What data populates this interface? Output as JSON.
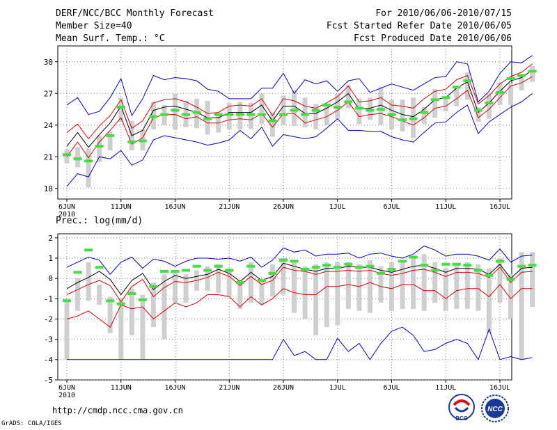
{
  "header": {
    "title": "DERF/NCC/BCC Monthly Forecast",
    "member_size": "Member Size=40",
    "variable": "Mean Surf. Temp.: °C",
    "period": "For 2010/06/06-2010/07/15",
    "started_refer": "Fcst Started Refer Date 2010/06/05",
    "produced": "Fcst Produced Date 2010/06/06"
  },
  "footer": {
    "url": "http://cmdp.ncc.cma.gov.cn",
    "credit": "GrADS: COLA/IGES"
  },
  "logos": {
    "bcc_label": "BCC",
    "ncc_label": "NCC"
  },
  "colors": {
    "max_min": "#0000cc",
    "spread": "#dd0000",
    "mean": "#000000",
    "members_box": "#cfcfcf",
    "median_marker": "#44dd44"
  },
  "chart_data": [
    {
      "type": "line",
      "title": "Mean Surf. Temp.: °C",
      "xlabel": "",
      "ylabel": "°C",
      "x_tick_labels": [
        "6JUN",
        "11JUN",
        "16JUN",
        "21JUN",
        "26JUN",
        "1JUL",
        "6JUL",
        "11JUL",
        "16JUL"
      ],
      "x_tick_sub": "2010",
      "ylim": [
        17,
        31.5
      ],
      "yticks": [
        "18",
        "21",
        "24",
        "27",
        "30"
      ],
      "ytick_values": [
        18,
        21,
        24,
        27,
        30
      ],
      "grid": true,
      "series": [
        {
          "name": "max",
          "values": [
            25.9,
            26.6,
            25.0,
            25.3,
            26.6,
            28.4,
            24.9,
            26.5,
            28.7,
            28.3,
            28.5,
            28.4,
            28.2,
            27.4,
            27.2,
            26.5,
            26.5,
            26.5,
            27.5,
            27.5,
            28.9,
            27.0,
            28.3,
            27.9,
            28.2,
            27.2,
            28.2,
            28.4,
            27.1,
            27.5,
            27.9,
            27.6,
            27.3,
            27.9,
            28.5,
            28.6,
            30.0,
            29.8,
            26.2,
            27.2,
            28.9,
            30.0,
            29.9,
            30.6
          ]
        },
        {
          "name": "spread_upper",
          "values": [
            23.3,
            24.1,
            22.7,
            23.9,
            24.9,
            26.4,
            23.7,
            24.4,
            26.1,
            26.4,
            26.5,
            26.2,
            25.7,
            25.1,
            25.2,
            25.8,
            25.9,
            25.8,
            26.5,
            24.9,
            26.5,
            26.3,
            25.8,
            25.6,
            26.1,
            26.7,
            27.7,
            26.2,
            26.3,
            26.6,
            25.9,
            25.8,
            25.6,
            26.5,
            27.2,
            27.4,
            28.3,
            28.7,
            26.0,
            26.8,
            27.9,
            28.6,
            29.0,
            29.8
          ]
        },
        {
          "name": "mean",
          "values": [
            22.0,
            23.3,
            21.9,
            23.1,
            24.2,
            25.8,
            23.0,
            23.5,
            25.4,
            25.7,
            25.8,
            25.5,
            25.2,
            24.7,
            24.7,
            25.2,
            25.2,
            25.2,
            25.9,
            24.4,
            25.8,
            25.8,
            25.1,
            25.1,
            25.6,
            26.2,
            27.0,
            25.5,
            25.6,
            25.9,
            25.4,
            25.0,
            24.8,
            25.5,
            26.4,
            26.6,
            27.5,
            28.1,
            25.2,
            26.1,
            27.2,
            28.2,
            28.5,
            29.2
          ]
        },
        {
          "name": "spread_lower",
          "values": [
            21.0,
            22.4,
            20.9,
            22.4,
            23.5,
            24.7,
            22.2,
            22.8,
            24.7,
            25.0,
            25.0,
            24.6,
            24.8,
            24.2,
            24.2,
            24.5,
            24.6,
            24.5,
            25.1,
            23.8,
            25.1,
            25.1,
            24.2,
            24.5,
            24.8,
            25.4,
            26.2,
            24.8,
            25.0,
            25.1,
            24.8,
            24.4,
            24.0,
            24.7,
            25.6,
            25.8,
            26.5,
            27.3,
            24.7,
            25.5,
            26.6,
            27.7,
            28.0,
            28.6
          ]
        },
        {
          "name": "min",
          "values": [
            18.2,
            19.4,
            19.1,
            21.0,
            20.8,
            21.6,
            20.2,
            20.7,
            22.6,
            23.0,
            22.8,
            22.6,
            22.4,
            22.1,
            22.3,
            22.6,
            23.5,
            22.7,
            23.8,
            22.0,
            23.1,
            22.9,
            22.7,
            22.9,
            23.7,
            24.6,
            23.5,
            23.5,
            23.4,
            23.4,
            22.9,
            22.6,
            22.4,
            23.3,
            24.2,
            24.3,
            25.2,
            25.9,
            23.2,
            24.3,
            25.0,
            25.7,
            26.2,
            27.0
          ]
        },
        {
          "name": "box_top",
          "values": [
            21.7,
            21.9,
            21.8,
            23.0,
            23.4,
            26.6,
            24.4,
            23.6,
            26.2,
            25.9,
            27.0,
            26.3,
            26.5,
            26.3,
            25.0,
            26.1,
            26.2,
            26.1,
            27.0,
            25.2,
            26.8,
            27.3,
            26.6,
            26.0,
            26.0,
            27.0,
            27.8,
            26.5,
            26.6,
            27.6,
            26.4,
            26.4,
            26.6,
            25.7,
            27.4,
            26.6,
            27.7,
            29.0,
            25.7,
            27.0,
            28.0,
            28.0,
            28.6,
            29.6
          ]
        },
        {
          "name": "box_bottom",
          "values": [
            20.4,
            20.0,
            18.1,
            20.5,
            21.6,
            24.3,
            21.6,
            21.6,
            23.6,
            24.0,
            23.6,
            23.8,
            23.7,
            23.1,
            23.3,
            23.6,
            23.6,
            23.6,
            24.1,
            22.9,
            24.0,
            23.9,
            23.8,
            23.6,
            24.0,
            24.6,
            25.6,
            24.1,
            24.5,
            24.0,
            23.6,
            23.4,
            22.8,
            24.1,
            24.7,
            25.3,
            25.8,
            26.4,
            24.3,
            24.6,
            25.9,
            25.9,
            27.3,
            28.1
          ]
        },
        {
          "name": "median",
          "values": [
            21.2,
            20.8,
            20.6,
            22.0,
            23.0,
            25.7,
            22.4,
            22.5,
            24.8,
            25.0,
            25.4,
            25.0,
            25.2,
            24.6,
            25.0,
            25.0,
            25.0,
            25.0,
            25.0,
            24.4,
            25.0,
            25.4,
            25.0,
            25.4,
            25.9,
            25.7,
            26.2,
            25.6,
            25.4,
            25.5,
            25.0,
            24.5,
            24.6,
            25.2,
            26.4,
            26.6,
            27.6,
            28.2,
            25.4,
            26.1,
            27.1,
            28.4,
            28.7,
            29.1
          ]
        }
      ]
    },
    {
      "type": "line",
      "title": "Prec.: log(mm/d)",
      "xlabel": "",
      "ylabel": "log(mm/d)",
      "x_tick_labels": [
        "6JUN",
        "11JUN",
        "16JUN",
        "21JUN",
        "26JUN",
        "1JUL",
        "6JUL",
        "11JUL",
        "16JUL"
      ],
      "x_tick_sub": "2010",
      "ylim": [
        -5,
        2.2
      ],
      "yticks": [
        "2",
        "1",
        "0",
        "-1",
        "-2",
        "-3",
        "-4",
        "-5"
      ],
      "ytick_values": [
        2,
        1,
        0,
        -1,
        -2,
        -3,
        -4,
        -5
      ],
      "grid": true,
      "series": [
        {
          "name": "max",
          "values": [
            0.55,
            0.8,
            1.05,
            0.9,
            0.2,
            0.8,
            1.05,
            0.5,
            0.95,
            0.85,
            0.6,
            0.85,
            1.0,
            1.0,
            0.95,
            1.0,
            0.85,
            1.05,
            0.55,
            0.9,
            1.5,
            1.3,
            1.4,
            1.1,
            1.2,
            1.2,
            1.25,
            1.0,
            1.2,
            1.25,
            1.1,
            1.0,
            1.2,
            1.6,
            1.4,
            1.1,
            1.2,
            1.2,
            1.1,
            0.9,
            1.45,
            0.8,
            1.1,
            1.15
          ]
        },
        {
          "name": "mean",
          "values": [
            -0.5,
            -0.2,
            0.05,
            0.35,
            -0.05,
            -0.8,
            -0.1,
            0.25,
            -0.55,
            -0.15,
            0.15,
            0.0,
            0.1,
            0.2,
            0.45,
            0.25,
            -0.15,
            0.3,
            -0.1,
            0.1,
            0.75,
            0.6,
            0.45,
            0.35,
            0.5,
            0.5,
            0.6,
            0.55,
            0.55,
            0.4,
            0.3,
            0.45,
            0.6,
            0.65,
            0.5,
            0.3,
            0.5,
            0.5,
            0.45,
            0.2,
            0.7,
            0.0,
            0.5,
            0.55
          ]
        },
        {
          "name": "spread_upper",
          "values": [
            -0.8,
            -0.55,
            -0.3,
            -0.1,
            -0.35,
            -1.15,
            -0.4,
            -0.05,
            -0.9,
            -0.45,
            -0.15,
            -0.2,
            -0.1,
            0.05,
            0.3,
            0.1,
            -0.35,
            0.1,
            -0.3,
            -0.1,
            0.55,
            0.4,
            0.35,
            0.2,
            0.35,
            0.35,
            0.4,
            0.35,
            0.4,
            0.25,
            0.15,
            0.25,
            0.4,
            0.45,
            0.3,
            0.1,
            0.3,
            0.3,
            0.25,
            0.05,
            0.55,
            -0.2,
            0.3,
            0.35
          ]
        },
        {
          "name": "spread_lower",
          "values": [
            -2.0,
            -1.85,
            -1.6,
            -2.0,
            -2.4,
            -1.3,
            -1.5,
            -1.4,
            -2.0,
            -1.6,
            -1.2,
            -1.4,
            -1.2,
            -0.8,
            -0.8,
            -0.9,
            -1.4,
            -0.9,
            -1.3,
            -1.0,
            -0.5,
            -0.7,
            -0.8,
            -0.8,
            -0.4,
            -0.4,
            -0.3,
            -0.4,
            -0.2,
            -0.4,
            -0.5,
            -0.3,
            -0.3,
            -0.6,
            -0.6,
            -1.0,
            -0.6,
            -0.5,
            -0.5,
            -0.9,
            -0.3,
            -1.0,
            -0.5,
            -0.5
          ]
        },
        {
          "name": "min",
          "values": [
            -4.0,
            -4.0,
            -4.0,
            -4.0,
            -4.0,
            -4.0,
            -4.0,
            -4.0,
            -4.0,
            -4.0,
            -4.0,
            -4.0,
            -4.0,
            -4.0,
            -4.0,
            -4.0,
            -4.0,
            -4.0,
            -4.0,
            -4.0,
            -3.0,
            -3.8,
            -3.6,
            -4.0,
            -4.0,
            -2.95,
            -3.6,
            -3.2,
            -4.0,
            -3.2,
            -2.6,
            -2.4,
            -2.8,
            -3.6,
            -3.5,
            -3.2,
            -3.0,
            -3.2,
            -4.0,
            -2.5,
            -4.0,
            -3.85,
            -4.0,
            -3.9
          ]
        },
        {
          "name": "box_top",
          "values": [
            -1.0,
            0.0,
            0.8,
            -0.3,
            -0.9,
            -1.0,
            -0.5,
            -0.8,
            -0.2,
            0.2,
            0.4,
            0.2,
            0.4,
            0.6,
            0.7,
            0.5,
            -0.2,
            0.8,
            -0.1,
            0.7,
            1.0,
            0.9,
            0.6,
            0.7,
            0.8,
            0.8,
            0.8,
            0.7,
            0.9,
            0.6,
            0.8,
            0.9,
            1.0,
            1.2,
            0.8,
            0.5,
            0.7,
            0.8,
            0.7,
            0.5,
            1.0,
            0.2,
            1.3,
            1.3
          ]
        },
        {
          "name": "box_bottom",
          "values": [
            -4.0,
            -1.6,
            -1.1,
            -1.3,
            -2.7,
            -4.0,
            -2.8,
            -4.0,
            -2.4,
            -3.0,
            -1.2,
            -1.2,
            -0.6,
            -0.6,
            -0.7,
            -0.9,
            -1.5,
            -1.2,
            -1.3,
            -0.9,
            -0.8,
            -1.7,
            -2.0,
            -2.8,
            -2.4,
            -2.3,
            -1.5,
            -1.6,
            -1.7,
            -1.2,
            -1.6,
            -1.5,
            -1.5,
            -1.6,
            -1.2,
            -1.6,
            -1.5,
            -1.5,
            -1.6,
            -2.7,
            -1.2,
            -2.0,
            -4.0,
            -1.4
          ]
        },
        {
          "name": "median",
          "values": [
            -1.1,
            0.3,
            1.4,
            0.55,
            -1.1,
            -1.25,
            -0.75,
            -1.05,
            -0.4,
            0.35,
            0.35,
            0.4,
            0.6,
            0.4,
            0.6,
            0.4,
            -0.2,
            0.6,
            -0.1,
            0.25,
            0.9,
            0.85,
            0.45,
            0.55,
            0.65,
            0.55,
            0.7,
            0.55,
            0.6,
            0.25,
            0.45,
            0.85,
            1.05,
            0.65,
            0.4,
            0.7,
            0.7,
            0.65,
            0.4,
            0.15,
            0.85,
            -0.05,
            0.6,
            0.65
          ]
        }
      ]
    }
  ]
}
